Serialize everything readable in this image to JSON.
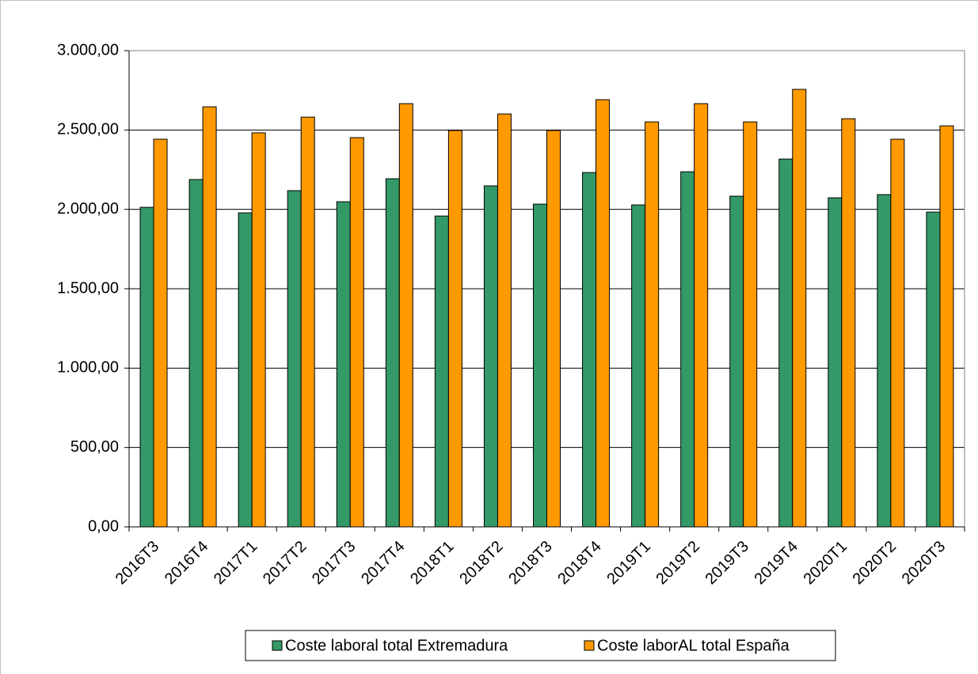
{
  "chart_data": {
    "type": "bar",
    "categories": [
      "2016T3",
      "2016T4",
      "2017T1",
      "2017T2",
      "2017T3",
      "2017T4",
      "2018T1",
      "2018T2",
      "2018T3",
      "2018T4",
      "2019T1",
      "2019T2",
      "2019T3",
      "2019T4",
      "2020T1",
      "2020T2",
      "2020T3"
    ],
    "series": [
      {
        "name": "Coste laboral total Extremadura",
        "color": "#339966",
        "values": [
          2013,
          2188,
          1978,
          2118,
          2048,
          2193,
          1958,
          2148,
          2033,
          2232,
          2028,
          2237,
          2083,
          2317,
          2073,
          2093,
          1983
        ]
      },
      {
        "name": "Coste laborAL total España",
        "color": "#ff9900",
        "values": [
          2442,
          2646,
          2482,
          2581,
          2452,
          2666,
          2497,
          2601,
          2497,
          2691,
          2551,
          2666,
          2551,
          2756,
          2571,
          2442,
          2526
        ]
      }
    ],
    "ylim": [
      0,
      3000
    ],
    "yticks": [
      {
        "value": 0,
        "label": "0,00"
      },
      {
        "value": 500,
        "label": "500,00"
      },
      {
        "value": 1000,
        "label": "1.000,00"
      },
      {
        "value": 1500,
        "label": "1.500,00"
      },
      {
        "value": 2000,
        "label": "2.000,00"
      },
      {
        "value": 2500,
        "label": "2.500,00"
      },
      {
        "value": 3000,
        "label": "3.000,00"
      }
    ],
    "grid": true,
    "legend": "bottom"
  }
}
